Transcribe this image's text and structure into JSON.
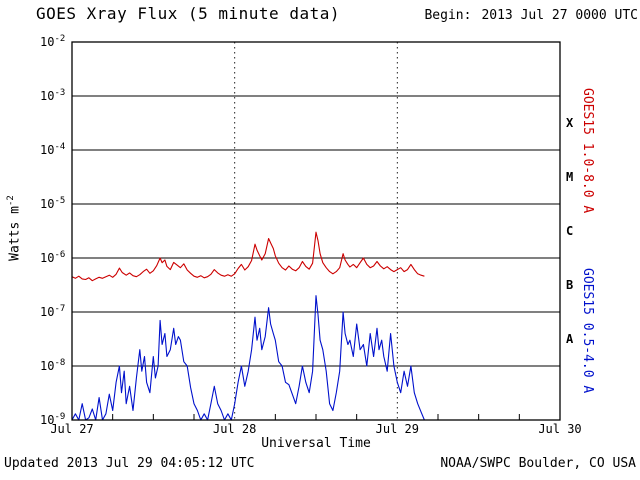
{
  "header": {
    "title": "GOES Xray Flux (5 minute data)",
    "begin_label": "Begin:",
    "begin_value": "2013 Jul 27 0000 UTC"
  },
  "footer": {
    "updated": "Updated 2013 Jul 29 04:05:12 UTC",
    "credit": "NOAA/SWPC Boulder, CO USA"
  },
  "chart_data": {
    "type": "line",
    "title": "GOES Xray Flux (5 minute data)",
    "xlabel": "Universal Time",
    "ylabel_base": "Watts m",
    "ylabel_sup": "-2",
    "y_scale": "log",
    "ylim": [
      1e-09,
      0.01
    ],
    "x_unit": "hours since 2013 Jul 27 0000 UTC",
    "xlim_hours": [
      0,
      72
    ],
    "grid": "horizontal solid per decade, dotted vertical at day boundaries",
    "y_tick_exponents": [
      -2,
      -3,
      -4,
      -5,
      -6,
      -7,
      -8,
      -9
    ],
    "grid_exponents": [
      -3,
      -4,
      -5,
      -6,
      -7,
      -8
    ],
    "day_gridlines_hours": [
      24,
      48
    ],
    "x_ticks": [
      {
        "hours": 0,
        "label": "Jul 27"
      },
      {
        "hours": 24,
        "label": "Jul 28"
      },
      {
        "hours": 48,
        "label": "Jul 29"
      },
      {
        "hours": 72,
        "label": "Jul 30"
      }
    ],
    "flare_classes": [
      {
        "label": "X",
        "between_exponents": [
          -4,
          -3
        ]
      },
      {
        "label": "M",
        "between_exponents": [
          -5,
          -4
        ]
      },
      {
        "label": "C",
        "between_exponents": [
          -6,
          -5
        ]
      },
      {
        "label": "B",
        "between_exponents": [
          -7,
          -6
        ]
      },
      {
        "label": "A",
        "between_exponents": [
          -8,
          -7
        ]
      }
    ],
    "series": [
      {
        "name": "GOES15 1.0-8.0 A",
        "color": "#cc0000",
        "points": [
          [
            0,
            4.5e-07
          ],
          [
            0.5,
            4.2e-07
          ],
          [
            1,
            4.6e-07
          ],
          [
            1.5,
            4.1e-07
          ],
          [
            2,
            4e-07
          ],
          [
            2.5,
            4.3e-07
          ],
          [
            3,
            3.8e-07
          ],
          [
            3.5,
            4.1e-07
          ],
          [
            4,
            4.4e-07
          ],
          [
            4.5,
            4.2e-07
          ],
          [
            5,
            4.5e-07
          ],
          [
            5.5,
            4.8e-07
          ],
          [
            6,
            4.4e-07
          ],
          [
            6.5,
            5e-07
          ],
          [
            7,
            6.5e-07
          ],
          [
            7.4,
            5.4e-07
          ],
          [
            8,
            4.8e-07
          ],
          [
            8.5,
            5.3e-07
          ],
          [
            9,
            4.7e-07
          ],
          [
            9.5,
            4.5e-07
          ],
          [
            10,
            4.9e-07
          ],
          [
            10.5,
            5.6e-07
          ],
          [
            11,
            6.2e-07
          ],
          [
            11.5,
            5.2e-07
          ],
          [
            12,
            5.8e-07
          ],
          [
            12.5,
            7.2e-07
          ],
          [
            13,
            1e-06
          ],
          [
            13.3,
            8.2e-07
          ],
          [
            13.7,
            9.2e-07
          ],
          [
            14,
            7e-07
          ],
          [
            14.5,
            6.1e-07
          ],
          [
            15,
            8.3e-07
          ],
          [
            15.5,
            7.4e-07
          ],
          [
            16,
            6.6e-07
          ],
          [
            16.5,
            7.8e-07
          ],
          [
            17,
            6e-07
          ],
          [
            17.5,
            5.2e-07
          ],
          [
            18,
            4.6e-07
          ],
          [
            18.5,
            4.4e-07
          ],
          [
            19,
            4.7e-07
          ],
          [
            19.5,
            4.3e-07
          ],
          [
            20,
            4.5e-07
          ],
          [
            20.5,
            5e-07
          ],
          [
            21,
            6.1e-07
          ],
          [
            21.5,
            5.3e-07
          ],
          [
            22,
            4.8e-07
          ],
          [
            22.5,
            4.6e-07
          ],
          [
            23,
            4.9e-07
          ],
          [
            23.5,
            4.6e-07
          ],
          [
            24,
            5.1e-07
          ],
          [
            24.5,
            6.4e-07
          ],
          [
            25,
            7.6e-07
          ],
          [
            25.5,
            6e-07
          ],
          [
            26,
            6.9e-07
          ],
          [
            26.5,
            9e-07
          ],
          [
            27,
            1.8e-06
          ],
          [
            27.3,
            1.4e-06
          ],
          [
            27.7,
            1.1e-06
          ],
          [
            28,
            9.2e-07
          ],
          [
            28.5,
            1.2e-06
          ],
          [
            29,
            2.3e-06
          ],
          [
            29.3,
            1.9e-06
          ],
          [
            29.7,
            1.5e-06
          ],
          [
            30,
            1.1e-06
          ],
          [
            30.5,
            8e-07
          ],
          [
            31,
            6.6e-07
          ],
          [
            31.5,
            6e-07
          ],
          [
            32,
            7.1e-07
          ],
          [
            32.5,
            6.2e-07
          ],
          [
            33,
            5.8e-07
          ],
          [
            33.5,
            6.6e-07
          ],
          [
            34,
            8.6e-07
          ],
          [
            34.5,
            7e-07
          ],
          [
            35,
            6.2e-07
          ],
          [
            35.5,
            8e-07
          ],
          [
            36,
            3e-06
          ],
          [
            36.3,
            2.1e-06
          ],
          [
            36.6,
            1.2e-06
          ],
          [
            37,
            8.2e-07
          ],
          [
            37.5,
            6.6e-07
          ],
          [
            38,
            5.6e-07
          ],
          [
            38.5,
            5.1e-07
          ],
          [
            39,
            5.6e-07
          ],
          [
            39.5,
            6.6e-07
          ],
          [
            40,
            1.2e-06
          ],
          [
            40.3,
            9.2e-07
          ],
          [
            40.7,
            7.6e-07
          ],
          [
            41,
            6.8e-07
          ],
          [
            41.5,
            7.6e-07
          ],
          [
            42,
            6.6e-07
          ],
          [
            42.5,
            8.2e-07
          ],
          [
            43,
            1e-06
          ],
          [
            43.5,
            7.6e-07
          ],
          [
            44,
            6.6e-07
          ],
          [
            44.5,
            7.1e-07
          ],
          [
            45,
            8.6e-07
          ],
          [
            45.5,
            7.1e-07
          ],
          [
            46,
            6.3e-07
          ],
          [
            46.5,
            6.9e-07
          ],
          [
            47,
            6.1e-07
          ],
          [
            47.5,
            5.6e-07
          ],
          [
            48,
            6.1e-07
          ],
          [
            48.5,
            6.6e-07
          ],
          [
            49,
            5.6e-07
          ],
          [
            49.5,
            6.1e-07
          ],
          [
            50,
            7.6e-07
          ],
          [
            50.5,
            6.1e-07
          ],
          [
            51,
            5.1e-07
          ],
          [
            51.5,
            4.8e-07
          ],
          [
            52,
            4.6e-07
          ]
        ]
      },
      {
        "name": "GOES15 0.5-4.0 A",
        "color": "#0011cc",
        "points": [
          [
            0,
            1e-09
          ],
          [
            0.5,
            1.3e-09
          ],
          [
            1,
            1e-09
          ],
          [
            1.5,
            2e-09
          ],
          [
            2,
            1e-09
          ],
          [
            2.5,
            1.1e-09
          ],
          [
            3,
            1.6e-09
          ],
          [
            3.5,
            1e-09
          ],
          [
            4,
            2.6e-09
          ],
          [
            4.5,
            1e-09
          ],
          [
            5,
            1.3e-09
          ],
          [
            5.5,
            3e-09
          ],
          [
            6,
            1.5e-09
          ],
          [
            6.5,
            5e-09
          ],
          [
            7,
            1e-08
          ],
          [
            7.3,
            3.2e-09
          ],
          [
            7.7,
            8e-09
          ],
          [
            8,
            2e-09
          ],
          [
            8.5,
            4.2e-09
          ],
          [
            9,
            1.5e-09
          ],
          [
            9.5,
            6e-09
          ],
          [
            10,
            2e-08
          ],
          [
            10.3,
            8e-09
          ],
          [
            10.7,
            1.5e-08
          ],
          [
            11,
            5e-09
          ],
          [
            11.5,
            3.2e-09
          ],
          [
            12,
            1.5e-08
          ],
          [
            12.3,
            6e-09
          ],
          [
            12.7,
            1e-08
          ],
          [
            13,
            7e-08
          ],
          [
            13.3,
            2.5e-08
          ],
          [
            13.7,
            4e-08
          ],
          [
            14,
            1.5e-08
          ],
          [
            14.5,
            2e-08
          ],
          [
            15,
            5e-08
          ],
          [
            15.3,
            2.5e-08
          ],
          [
            15.7,
            3.5e-08
          ],
          [
            16,
            3e-08
          ],
          [
            16.5,
            1.2e-08
          ],
          [
            17,
            1e-08
          ],
          [
            17.5,
            4e-09
          ],
          [
            18,
            2e-09
          ],
          [
            18.5,
            1.5e-09
          ],
          [
            19,
            1e-09
          ],
          [
            19.5,
            1.3e-09
          ],
          [
            20,
            1e-09
          ],
          [
            20.5,
            2e-09
          ],
          [
            21,
            4.2e-09
          ],
          [
            21.5,
            2e-09
          ],
          [
            22,
            1.5e-09
          ],
          [
            22.5,
            1e-09
          ],
          [
            23,
            1.3e-09
          ],
          [
            23.5,
            1e-09
          ],
          [
            24,
            2e-09
          ],
          [
            24.5,
            5e-09
          ],
          [
            25,
            1e-08
          ],
          [
            25.5,
            4.2e-09
          ],
          [
            26,
            8e-09
          ],
          [
            26.5,
            2e-08
          ],
          [
            27,
            8e-08
          ],
          [
            27.3,
            3e-08
          ],
          [
            27.7,
            5e-08
          ],
          [
            28,
            2e-08
          ],
          [
            28.5,
            3.5e-08
          ],
          [
            29,
            1.2e-07
          ],
          [
            29.3,
            6e-08
          ],
          [
            29.7,
            4e-08
          ],
          [
            30,
            3e-08
          ],
          [
            30.5,
            1.2e-08
          ],
          [
            31,
            1e-08
          ],
          [
            31.5,
            5e-09
          ],
          [
            32,
            4.5e-09
          ],
          [
            32.5,
            3e-09
          ],
          [
            33,
            2e-09
          ],
          [
            33.5,
            4.2e-09
          ],
          [
            34,
            1e-08
          ],
          [
            34.5,
            5e-09
          ],
          [
            35,
            3.2e-09
          ],
          [
            35.5,
            8e-09
          ],
          [
            36,
            2e-07
          ],
          [
            36.3,
            9e-08
          ],
          [
            36.6,
            3e-08
          ],
          [
            37,
            2e-08
          ],
          [
            37.5,
            8e-09
          ],
          [
            38,
            2e-09
          ],
          [
            38.5,
            1.5e-09
          ],
          [
            39,
            3.2e-09
          ],
          [
            39.5,
            8e-09
          ],
          [
            40,
            1e-07
          ],
          [
            40.3,
            4e-08
          ],
          [
            40.7,
            2.5e-08
          ],
          [
            41,
            3e-08
          ],
          [
            41.5,
            1.5e-08
          ],
          [
            42,
            6e-08
          ],
          [
            42.5,
            2e-08
          ],
          [
            43,
            2.5e-08
          ],
          [
            43.5,
            1e-08
          ],
          [
            44,
            4e-08
          ],
          [
            44.5,
            1.5e-08
          ],
          [
            45,
            5e-08
          ],
          [
            45.3,
            2e-08
          ],
          [
            45.7,
            3e-08
          ],
          [
            46,
            1.5e-08
          ],
          [
            46.5,
            8e-09
          ],
          [
            47,
            4e-08
          ],
          [
            47.5,
            1e-08
          ],
          [
            48,
            5e-09
          ],
          [
            48.5,
            3.2e-09
          ],
          [
            49,
            8e-09
          ],
          [
            49.5,
            4.2e-09
          ],
          [
            50,
            1e-08
          ],
          [
            50.5,
            3.2e-09
          ],
          [
            51,
            2e-09
          ],
          [
            51.5,
            1.4e-09
          ],
          [
            52,
            1e-09
          ]
        ]
      }
    ]
  }
}
